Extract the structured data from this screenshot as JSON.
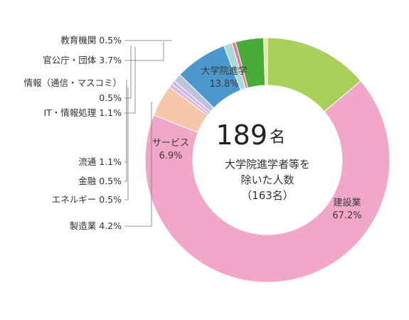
{
  "chart_data": {
    "type": "pie",
    "donut": true,
    "total": {
      "number": "189",
      "unit": "名",
      "caption_lines": [
        "大学院進学者等を",
        "除いた人数",
        "（163名）"
      ]
    },
    "series": [
      {
        "label": "大学院進学",
        "value": 13.8,
        "value_text": "13.8%",
        "color": "#a8cf5a",
        "label_pos": "inside"
      },
      {
        "label": "建設業",
        "value": 67.2,
        "value_text": "67.2%",
        "color": "#f2a6c8",
        "label_pos": "inside"
      },
      {
        "label": "製造業",
        "value": 4.2,
        "value_text": "4.2%",
        "color": "#f6c6a8",
        "label_pos": "outside"
      },
      {
        "label": "エネルギー",
        "value": 0.5,
        "value_text": "0.5%",
        "color": "#e2b4d8",
        "label_pos": "outside"
      },
      {
        "label": "金融",
        "value": 0.5,
        "value_text": "0.5%",
        "color": "#c9b8e0",
        "label_pos": "outside"
      },
      {
        "label": "流通",
        "value": 1.1,
        "value_text": "1.1%",
        "color": "#bfc2dc",
        "label_pos": "outside"
      },
      {
        "label": "サービス",
        "value": 6.9,
        "value_text": "6.9%",
        "color": "#4c97cc",
        "label_pos": "inside"
      },
      {
        "label": "IT・情報処理",
        "value": 1.1,
        "value_text": "1.1%",
        "color": "#a6dcd8",
        "label_pos": "outside"
      },
      {
        "label": "情報（通信・マスコミ）",
        "value": 0.5,
        "value_text": "0.5%",
        "color": "#e07aa6",
        "label_pos": "outside"
      },
      {
        "label": "官公庁・団体",
        "value": 3.7,
        "value_text": "3.7%",
        "color": "#4aab3a",
        "label_pos": "outside"
      },
      {
        "label": "教育機関",
        "value": 0.5,
        "value_text": "0.5%",
        "color": "#dcec9c",
        "label_pos": "outside"
      }
    ]
  }
}
